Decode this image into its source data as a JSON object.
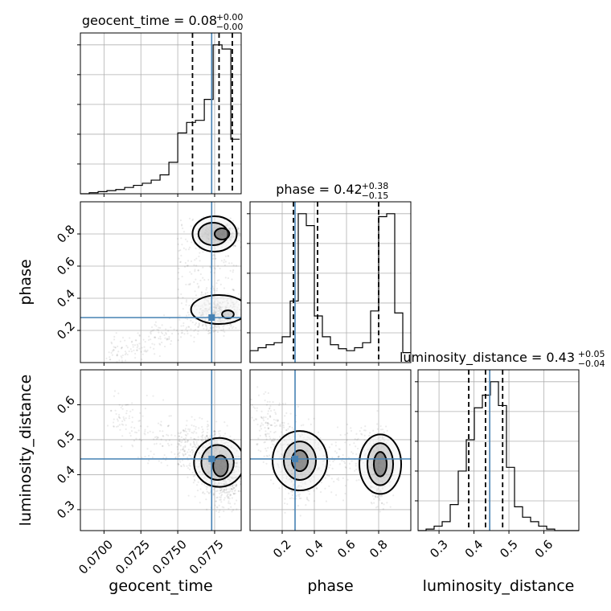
{
  "chart_data": {
    "type": "corner",
    "parameters": [
      "geocent_time",
      "phase",
      "luminosity_distance"
    ],
    "truths": {
      "geocent_time": 0.0773,
      "phase": 0.28,
      "luminosity_distance": 0.445
    },
    "panels": {
      "geocent_time": {
        "title": {
          "prefix": "geocent_time = 0.08",
          "sup": "+0.00",
          "sub": "−0.00"
        },
        "xlim": [
          0.0684,
          0.0793
        ],
        "quantiles": [
          0.076,
          0.0778,
          0.0787
        ],
        "bin_edges": [
          0.0684,
          0.069,
          0.0696,
          0.0702,
          0.0708,
          0.0714,
          0.072,
          0.0726,
          0.0732,
          0.0738,
          0.0744,
          0.075,
          0.0756,
          0.0762,
          0.0768,
          0.0774,
          0.078,
          0.0786,
          0.0792
        ],
        "hist": [
          0,
          1,
          2,
          3,
          4,
          6,
          8,
          10,
          13,
          18,
          30,
          58,
          68,
          70,
          90,
          142,
          138,
          52
        ],
        "xticks": [
          0.07,
          0.0725,
          0.075,
          0.0775
        ],
        "xticklabels": [
          "0.0700",
          "0.0725",
          "0.0750",
          "0.0775"
        ],
        "xlabel": "geocent_time"
      },
      "phase": {
        "title": {
          "prefix": "phase = 0.42",
          "sup": "+0.38",
          "sub": "−0.15"
        },
        "xlim": [
          0.0,
          1.0
        ],
        "quantiles": [
          0.27,
          0.42,
          0.8
        ],
        "bin_edges": [
          0.0,
          0.05,
          0.1,
          0.15,
          0.2,
          0.25,
          0.3,
          0.35,
          0.4,
          0.45,
          0.5,
          0.55,
          0.6,
          0.65,
          0.7,
          0.75,
          0.8,
          0.85,
          0.9,
          0.95,
          1.0
        ],
        "hist": [
          12,
          15,
          18,
          20,
          26,
          62,
          150,
          138,
          47,
          26,
          18,
          14,
          12,
          15,
          20,
          52,
          147,
          150,
          50,
          10
        ],
        "xticks": [
          0.2,
          0.4,
          0.6,
          0.8
        ],
        "xticklabels": [
          "0.2",
          "0.4",
          "0.6",
          "0.8"
        ],
        "xlabel": "phase",
        "ylim": [
          0.0,
          1.0
        ],
        "yticks": [
          0.2,
          0.4,
          0.6,
          0.8
        ],
        "yticklabels": [
          "0.2",
          "0.4",
          "0.6",
          "0.8"
        ],
        "ylabel": "phase"
      },
      "luminosity_distance": {
        "title": {
          "prefix": "luminosity_distance = 0.43",
          "sup": "+0.05",
          "sub": "−0.04"
        },
        "xlim": [
          0.24,
          0.7
        ],
        "quantiles": [
          0.385,
          0.433,
          0.482
        ],
        "bin_edges": [
          0.24,
          0.263,
          0.286,
          0.309,
          0.332,
          0.355,
          0.378,
          0.401,
          0.424,
          0.447,
          0.47,
          0.493,
          0.516,
          0.539,
          0.562,
          0.585,
          0.608,
          0.631,
          0.654,
          0.677,
          0.7
        ],
        "hist": [
          0,
          2,
          6,
          12,
          35,
          80,
          122,
          165,
          182,
          200,
          168,
          85,
          32,
          18,
          12,
          6,
          2,
          0,
          0,
          0
        ],
        "xticks": [
          0.3,
          0.4,
          0.5,
          0.6
        ],
        "xticklabels": [
          "0.3",
          "0.4",
          "0.5",
          "0.6"
        ],
        "xlabel": "luminosity_distance",
        "ylim": [
          0.24,
          0.7
        ],
        "yticks": [
          0.3,
          0.4,
          0.5,
          0.6
        ],
        "yticklabels": [
          "0.3",
          "0.4",
          "0.5",
          "0.6"
        ],
        "ylabel": "luminosity_distance"
      }
    },
    "colors": {
      "truth": "#4682b4",
      "hist": "#000000",
      "grid": "#b0b0b0"
    },
    "grid": true
  }
}
